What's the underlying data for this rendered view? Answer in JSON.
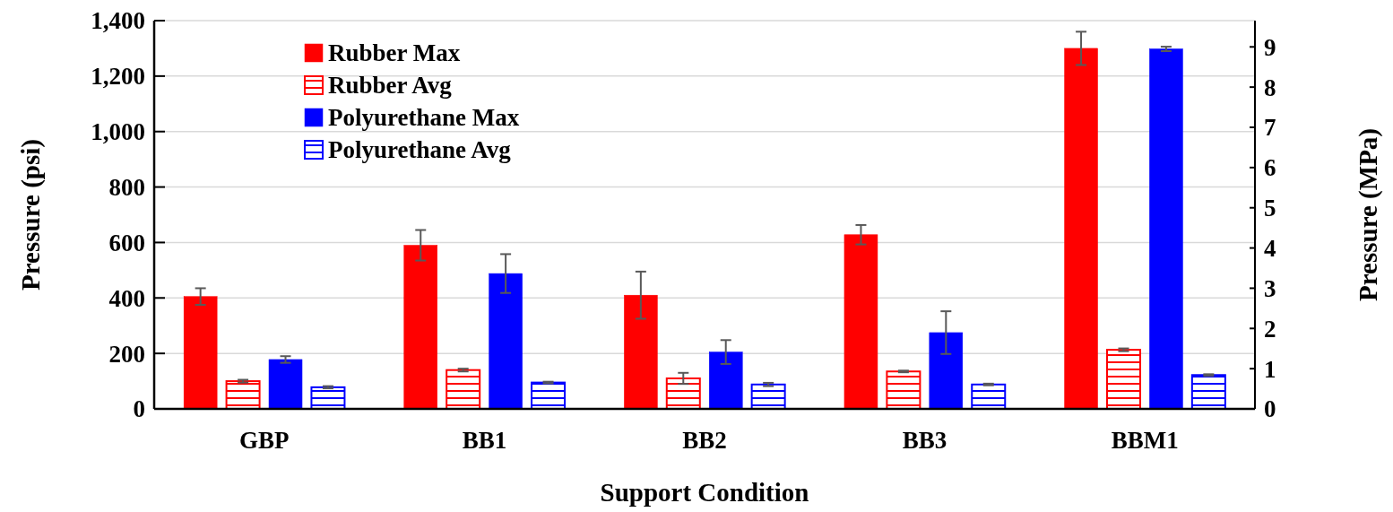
{
  "chart_data": {
    "type": "bar",
    "xlabel": "Support Condition",
    "ylabel": "Pressure (psi)",
    "y2label": "Pressure (MPa)",
    "categories": [
      "GBP",
      "BB1",
      "BB2",
      "BB3",
      "BBM1"
    ],
    "series": [
      {
        "name": "Rubber Max",
        "color": "#ff0000",
        "values": [
          405,
          590,
          410,
          628,
          1300
        ],
        "errors": [
          30,
          55,
          85,
          35,
          60
        ]
      },
      {
        "name": "Rubber Avg",
        "color": "#ff0000",
        "values": [
          100,
          140,
          110,
          135,
          213
        ],
        "errors": [
          5,
          5,
          20,
          3,
          5
        ]
      },
      {
        "name": "Polyurethane Max",
        "color": "#0000ff",
        "values": [
          178,
          488,
          205,
          275,
          1298
        ],
        "errors": [
          12,
          70,
          43,
          77,
          8
        ]
      },
      {
        "name": "Polyurethane Avg",
        "color": "#0000ff",
        "values": [
          78,
          95,
          88,
          88,
          122
        ],
        "errors": [
          4,
          3,
          6,
          3,
          3
        ]
      }
    ],
    "ylim": [
      0,
      1400
    ],
    "yticks": [
      {
        "value": 0,
        "label": "0"
      },
      {
        "value": 200,
        "label": "200"
      },
      {
        "value": 400,
        "label": "400"
      },
      {
        "value": 600,
        "label": "600"
      },
      {
        "value": 800,
        "label": "800"
      },
      {
        "value": 1000,
        "label": "1,000"
      },
      {
        "value": 1200,
        "label": "1,200"
      },
      {
        "value": 1400,
        "label": "1,400"
      }
    ],
    "y2lim": [
      0,
      9.653
    ],
    "y2ticks": [
      0,
      1,
      2,
      3,
      4,
      5,
      6,
      7,
      8,
      9
    ],
    "grid": "y",
    "legend": "top left"
  }
}
